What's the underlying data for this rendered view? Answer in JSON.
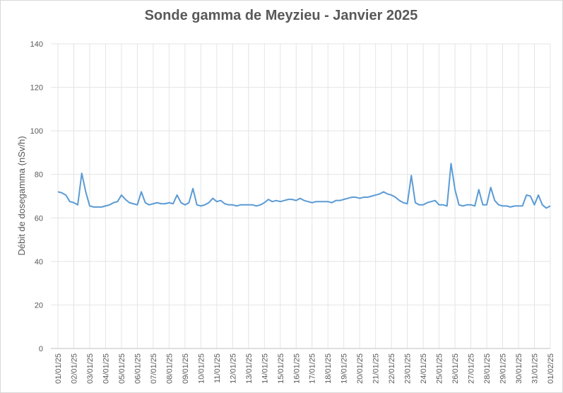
{
  "chart_data": {
    "type": "line",
    "title": "Sonde gamma de Meyzieu - Janvier 2025",
    "y_label": "Débit de dosegamma (nSv/h)",
    "categories": [
      "01/01/25",
      null,
      null,
      null,
      "02/01/25",
      null,
      null,
      null,
      "03/01/25",
      null,
      null,
      null,
      "04/01/25",
      null,
      null,
      null,
      "05/01/25",
      null,
      null,
      null,
      "06/01/25",
      null,
      null,
      null,
      "07/01/25",
      null,
      null,
      null,
      "08/01/25",
      null,
      null,
      null,
      "09/01/25",
      null,
      null,
      null,
      "10/01/25",
      null,
      null,
      null,
      "11/01/25",
      null,
      null,
      null,
      "12/01/25",
      null,
      null,
      null,
      "13/01/25",
      null,
      null,
      null,
      "14/01/25",
      null,
      null,
      null,
      "15/01/25",
      null,
      null,
      null,
      "16/01/25",
      null,
      null,
      null,
      "17/01/25",
      null,
      null,
      null,
      "18/01/25",
      null,
      null,
      null,
      "19/01/25",
      null,
      null,
      null,
      "20/01/25",
      null,
      null,
      null,
      "21/01/25",
      null,
      null,
      null,
      "22/01/25",
      null,
      null,
      null,
      "23/01/25",
      null,
      null,
      null,
      "24/01/25",
      null,
      null,
      null,
      "25/01/25",
      null,
      null,
      null,
      "26/01/25",
      null,
      null,
      null,
      "27/01/25",
      null,
      null,
      null,
      "28/01/25",
      null,
      null,
      null,
      "29/01/25",
      null,
      null,
      null,
      "30/01/25",
      null,
      null,
      null,
      "31/01/25",
      null,
      null,
      null,
      "01/02/25"
    ],
    "series": [
      {
        "name": "Débit de dose",
        "color": "#5b9bd5",
        "values": [
          72,
          71.5,
          70.5,
          67.5,
          67,
          66,
          80.5,
          72,
          65.5,
          65,
          65,
          65,
          65.5,
          66,
          67,
          67.5,
          70.5,
          68.5,
          67,
          66.5,
          66,
          72,
          67,
          66,
          66.5,
          67,
          66.5,
          66.5,
          67,
          66.5,
          70.5,
          67,
          66,
          67,
          73.5,
          66,
          65.5,
          66,
          67,
          69,
          67.5,
          68,
          66.5,
          66,
          66,
          65.5,
          66,
          66,
          66,
          66,
          65.5,
          66,
          67,
          68.5,
          67.5,
          68,
          67.5,
          68,
          68.5,
          68.5,
          68,
          69,
          68,
          67.5,
          67,
          67.5,
          67.5,
          67.5,
          67.5,
          67,
          68,
          68,
          68.5,
          69,
          69.5,
          69.5,
          69,
          69.5,
          69.5,
          70,
          70.5,
          71,
          72,
          71,
          70.5,
          69.5,
          68,
          67,
          66.5,
          79.5,
          67,
          66,
          66,
          67,
          67.5,
          68,
          66,
          66,
          65.5,
          85,
          73,
          66,
          65.5,
          66,
          66,
          65.5,
          73,
          66,
          66,
          74,
          68,
          66,
          65.5,
          65.5,
          65,
          65.5,
          65.5,
          65.5,
          70.5,
          70,
          66,
          70.5,
          66,
          64.5,
          65.5
        ]
      }
    ],
    "ylim": [
      0,
      140
    ],
    "yticks": [
      0,
      20,
      40,
      60,
      80,
      100,
      120,
      140
    ],
    "grid": true
  }
}
